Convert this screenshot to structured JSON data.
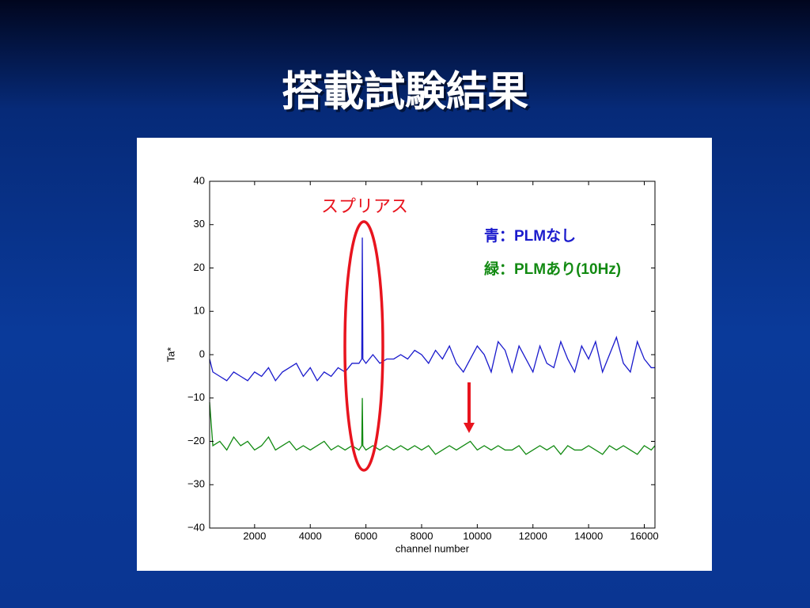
{
  "title": "搭載試験結果",
  "chart_data": {
    "type": "line",
    "xlabel": "channel number",
    "ylabel": "Ta*",
    "annotation": "スプリアス",
    "x": [
      384,
      500,
      750,
      1000,
      1250,
      1500,
      1750,
      2000,
      2250,
      2500,
      2750,
      3000,
      3250,
      3500,
      3750,
      4000,
      4250,
      4500,
      4750,
      5000,
      5250,
      5500,
      5750,
      5850,
      5870,
      5890,
      6000,
      6250,
      6500,
      6750,
      7000,
      7250,
      7500,
      7750,
      8000,
      8250,
      8500,
      8750,
      9000,
      9250,
      9500,
      9750,
      10000,
      10250,
      10500,
      10750,
      11000,
      11250,
      11500,
      11750,
      12000,
      12250,
      12500,
      12750,
      13000,
      13250,
      13500,
      13750,
      14000,
      14250,
      14500,
      14750,
      15000,
      15250,
      15500,
      15750,
      16000,
      16250,
      16384
    ],
    "series": [
      {
        "name": "青：PLMなし",
        "color": "#1a1acc",
        "values": [
          -1,
          -4,
          -5,
          -6,
          -4,
          -5,
          -6,
          -4,
          -5,
          -3,
          -6,
          -4,
          -3,
          -2,
          -5,
          -3,
          -6,
          -4,
          -5,
          -3,
          -4,
          -2,
          -2,
          -1,
          27,
          -1,
          -2,
          0,
          -2,
          -1,
          -1,
          0,
          -1,
          1,
          0,
          -2,
          1,
          -1,
          2,
          -2,
          -4,
          -1,
          2,
          0,
          -4,
          3,
          1,
          -4,
          2,
          -1,
          -4,
          2,
          -2,
          -3,
          3,
          -1,
          -4,
          2,
          -1,
          3,
          -4,
          0,
          4,
          -2,
          -4,
          3,
          -1,
          -3,
          -3
        ]
      },
      {
        "name": "緑：PLMあり(10Hz)",
        "color": "#128a12",
        "values": [
          -11,
          -21,
          -20,
          -22,
          -19,
          -21,
          -20,
          -22,
          -21,
          -19,
          -22,
          -21,
          -20,
          -22,
          -21,
          -22,
          -21,
          -20,
          -22,
          -21,
          -22,
          -21,
          -22,
          -21,
          -10,
          -21,
          -22,
          -21,
          -22,
          -21,
          -22,
          -21,
          -22,
          -21,
          -22,
          -21,
          -23,
          -22,
          -21,
          -22,
          -21,
          -20,
          -22,
          -21,
          -22,
          -21,
          -22,
          -22,
          -21,
          -23,
          -22,
          -21,
          -22,
          -21,
          -23,
          -21,
          -22,
          -22,
          -21,
          -22,
          -23,
          -21,
          -22,
          -21,
          -22,
          -23,
          -21,
          -22,
          -21
        ]
      }
    ],
    "xlim": [
      384,
      16384
    ],
    "ylim": [
      -40,
      40
    ],
    "xticks": [
      2000,
      4000,
      6000,
      8000,
      10000,
      12000,
      14000,
      16000
    ],
    "yticks": [
      {
        "value": -40,
        "label": "−40"
      },
      {
        "value": -30,
        "label": "−30"
      },
      {
        "value": -20,
        "label": "−20"
      },
      {
        "value": -10,
        "label": "−10"
      },
      0,
      10,
      20,
      30,
      40
    ]
  }
}
